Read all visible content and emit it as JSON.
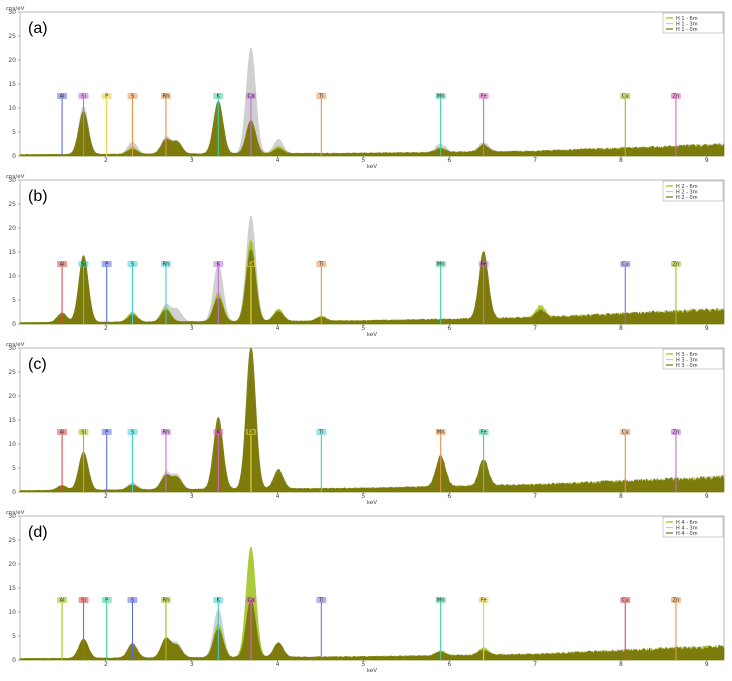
{
  "colors": {
    "s6m": "#9dc21a",
    "s3m": "#c8c8c8",
    "s0m": "#7a7408",
    "axis": "#555555",
    "frame": "#888888"
  },
  "chart_data": [
    {
      "type": "area",
      "panel": "(a)",
      "ylabel": "cps/eV",
      "xlabel": "keV",
      "xlim": [
        1.0,
        9.2
      ],
      "ylim": [
        0,
        30
      ],
      "yticks": [
        0,
        5,
        10,
        15,
        20,
        25,
        30
      ],
      "xticks": [
        2,
        3,
        4,
        5,
        6,
        7,
        8,
        9
      ],
      "legend": [
        "H 1 - 6m",
        "H 1 - 3m",
        "H 1 - 0m"
      ],
      "elements": [
        {
          "symbol": "Al",
          "energy": 1.49,
          "color": "#5b6ee1"
        },
        {
          "symbol": "Si",
          "energy": 1.74,
          "color": "#c46bd8"
        },
        {
          "symbol": "P",
          "energy": 2.01,
          "color": "#e8d23a"
        },
        {
          "symbol": "S",
          "energy": 2.31,
          "color": "#e8944a"
        },
        {
          "symbol": "Rh",
          "energy": 2.7,
          "color": "#e8944a"
        },
        {
          "symbol": "K",
          "energy": 3.31,
          "color": "#3cd0a0"
        },
        {
          "symbol": "Ca",
          "energy": 3.69,
          "color": "#c46bd8"
        },
        {
          "symbol": "Ti",
          "energy": 4.51,
          "color": "#e8944a"
        },
        {
          "symbol": "Mn",
          "energy": 5.9,
          "color": "#3cd0a0"
        },
        {
          "symbol": "Fe",
          "energy": 6.4,
          "color": "#e060c0"
        },
        {
          "symbol": "Cu",
          "energy": 8.05,
          "color": "#9dc21a"
        },
        {
          "symbol": "Zn",
          "energy": 8.64,
          "color": "#e060c0"
        }
      ],
      "series": [
        {
          "name": "H 1 - 6m",
          "peaks": [
            [
              1.74,
              7
            ],
            [
              2.31,
              1.5
            ],
            [
              2.7,
              2.8
            ],
            [
              2.83,
              2
            ],
            [
              3.31,
              8
            ],
            [
              3.69,
              6
            ],
            [
              4.01,
              1.5
            ],
            [
              5.9,
              1
            ],
            [
              6.4,
              1.2
            ]
          ]
        },
        {
          "name": "H 1 - 3m",
          "peaks": [
            [
              1.74,
              10
            ],
            [
              2.31,
              2.5
            ],
            [
              2.7,
              3.5
            ],
            [
              2.83,
              2.5
            ],
            [
              3.31,
              11
            ],
            [
              3.69,
              22
            ],
            [
              4.01,
              3
            ],
            [
              5.9,
              1.8
            ],
            [
              6.4,
              2
            ]
          ]
        },
        {
          "name": "H 1 - 0m",
          "peaks": [
            [
              1.74,
              9
            ],
            [
              2.31,
              1
            ],
            [
              2.7,
              3
            ],
            [
              2.83,
              2.5
            ],
            [
              3.31,
              11
            ],
            [
              3.69,
              7
            ],
            [
              4.01,
              1
            ],
            [
              5.9,
              0.8
            ],
            [
              6.4,
              1.5
            ]
          ]
        }
      ],
      "baseline": [
        [
          1.0,
          0.3
        ],
        [
          5.0,
          0.6
        ],
        [
          7.0,
          1.0
        ],
        [
          9.2,
          2.3
        ]
      ]
    },
    {
      "type": "area",
      "panel": "(b)",
      "ylabel": "cps/eV",
      "xlabel": "keV",
      "xlim": [
        1.0,
        9.2
      ],
      "ylim": [
        0,
        30
      ],
      "yticks": [
        0,
        5,
        10,
        15,
        20,
        25,
        30
      ],
      "xticks": [
        2,
        3,
        4,
        5,
        6,
        7,
        8,
        9
      ],
      "legend": [
        "H 2 - 6m",
        "H 2 - 3m",
        "H 2 - 0m"
      ],
      "elements": [
        {
          "symbol": "Al",
          "energy": 1.49,
          "color": "#e04a4a"
        },
        {
          "symbol": "Si",
          "energy": 1.74,
          "color": "#3cd0a0"
        },
        {
          "symbol": "P",
          "energy": 2.01,
          "color": "#5b6ee1"
        },
        {
          "symbol": "S",
          "energy": 2.31,
          "color": "#3cd0d0"
        },
        {
          "symbol": "Rh",
          "energy": 2.7,
          "color": "#3cd0d0"
        },
        {
          "symbol": "K",
          "energy": 3.31,
          "color": "#c46bd8"
        },
        {
          "symbol": "Ca",
          "energy": 3.69,
          "color": "#e8d23a"
        },
        {
          "symbol": "Ti",
          "energy": 4.51,
          "color": "#e8944a"
        },
        {
          "symbol": "Mn",
          "energy": 5.9,
          "color": "#3cd0a0"
        },
        {
          "symbol": "Fe",
          "energy": 6.4,
          "color": "#c46bd8"
        },
        {
          "symbol": "Cu",
          "energy": 8.05,
          "color": "#8a6be0"
        },
        {
          "symbol": "Zn",
          "energy": 8.64,
          "color": "#9dc21a"
        }
      ],
      "series": [
        {
          "name": "H 2 - 6m",
          "peaks": [
            [
              1.49,
              1.5
            ],
            [
              1.74,
              13
            ],
            [
              2.31,
              2
            ],
            [
              2.7,
              3
            ],
            [
              3.31,
              6
            ],
            [
              3.69,
              17
            ],
            [
              4.01,
              2.5
            ],
            [
              4.51,
              1
            ],
            [
              6.4,
              12
            ],
            [
              7.06,
              2.5
            ]
          ]
        },
        {
          "name": "H 2 - 3m",
          "peaks": [
            [
              1.49,
              1
            ],
            [
              1.74,
              3
            ],
            [
              2.31,
              2
            ],
            [
              2.7,
              3.5
            ],
            [
              2.83,
              2.5
            ],
            [
              3.31,
              12
            ],
            [
              3.69,
              22
            ],
            [
              4.01,
              2.5
            ],
            [
              6.4,
              2
            ]
          ]
        },
        {
          "name": "H 2 - 0m",
          "peaks": [
            [
              1.49,
              2
            ],
            [
              1.74,
              14
            ],
            [
              2.31,
              1.5
            ],
            [
              2.7,
              2.5
            ],
            [
              3.31,
              5
            ],
            [
              3.69,
              15
            ],
            [
              4.01,
              2
            ],
            [
              4.51,
              0.8
            ],
            [
              6.4,
              14
            ],
            [
              7.06,
              1.5
            ]
          ]
        }
      ],
      "baseline": [
        [
          1.0,
          0.3
        ],
        [
          5.0,
          0.7
        ],
        [
          7.0,
          1.3
        ],
        [
          9.2,
          3.0
        ]
      ]
    },
    {
      "type": "area",
      "panel": "(c)",
      "ylabel": "cps/eV",
      "xlabel": "keV",
      "xlim": [
        1.0,
        9.2
      ],
      "ylim": [
        0,
        30
      ],
      "yticks": [
        0,
        5,
        10,
        15,
        20,
        25,
        30
      ],
      "xticks": [
        2,
        3,
        4,
        5,
        6,
        7,
        8,
        9
      ],
      "legend": [
        "H 3 - 6m",
        "H 3 - 3m",
        "H 3 - 0m"
      ],
      "elements": [
        {
          "symbol": "Al",
          "energy": 1.49,
          "color": "#e04a4a"
        },
        {
          "symbol": "Si",
          "energy": 1.74,
          "color": "#9dc21a"
        },
        {
          "symbol": "P",
          "energy": 2.01,
          "color": "#5b6ee1"
        },
        {
          "symbol": "S",
          "energy": 2.31,
          "color": "#3cd0d0"
        },
        {
          "symbol": "Rh",
          "energy": 2.7,
          "color": "#c46bd8"
        },
        {
          "symbol": "K",
          "energy": 3.31,
          "color": "#e060c0"
        },
        {
          "symbol": "Ca",
          "energy": 3.69,
          "color": "#e8d23a"
        },
        {
          "symbol": "Ti",
          "energy": 4.51,
          "color": "#3cd0d0"
        },
        {
          "symbol": "Mn",
          "energy": 5.9,
          "color": "#e8944a"
        },
        {
          "symbol": "Fe",
          "energy": 6.4,
          "color": "#3cd0a0"
        },
        {
          "symbol": "Cu",
          "energy": 8.05,
          "color": "#e8944a"
        },
        {
          "symbol": "Zn",
          "energy": 8.64,
          "color": "#c46bd8"
        }
      ],
      "series": [
        {
          "name": "H 3 - 6m",
          "peaks": [
            [
              1.49,
              1
            ],
            [
              1.74,
              7
            ],
            [
              2.31,
              1.2
            ],
            [
              2.7,
              3
            ],
            [
              2.83,
              2.5
            ],
            [
              3.31,
              13
            ],
            [
              3.69,
              24
            ],
            [
              4.01,
              3
            ],
            [
              5.9,
              5
            ],
            [
              6.4,
              4
            ]
          ]
        },
        {
          "name": "H 3 - 3m",
          "peaks": [
            [
              1.49,
              0.8
            ],
            [
              1.74,
              2
            ],
            [
              2.31,
              1.5
            ],
            [
              2.7,
              3.5
            ],
            [
              2.83,
              3
            ],
            [
              3.31,
              9
            ],
            [
              3.69,
              22
            ],
            [
              4.01,
              2.5
            ],
            [
              5.9,
              1.5
            ],
            [
              6.4,
              2
            ]
          ]
        },
        {
          "name": "H 3 - 0m",
          "peaks": [
            [
              1.49,
              1
            ],
            [
              1.74,
              8
            ],
            [
              2.31,
              1
            ],
            [
              2.7,
              3
            ],
            [
              2.83,
              2.5
            ],
            [
              3.31,
              15
            ],
            [
              3.69,
              30
            ],
            [
              4.01,
              4
            ],
            [
              5.9,
              6.5
            ],
            [
              6.4,
              5.5
            ]
          ]
        }
      ],
      "baseline": [
        [
          1.0,
          0.3
        ],
        [
          5.0,
          0.8
        ],
        [
          7.0,
          1.5
        ],
        [
          9.2,
          3.0
        ]
      ]
    },
    {
      "type": "area",
      "panel": "(d)",
      "ylabel": "cps/eV",
      "xlabel": "keV",
      "xlim": [
        1.0,
        9.2
      ],
      "ylim": [
        0,
        30
      ],
      "yticks": [
        0,
        5,
        10,
        15,
        20,
        25,
        30
      ],
      "xticks": [
        2,
        3,
        4,
        5,
        6,
        7,
        8,
        9
      ],
      "legend": [
        "H 4 - 6m",
        "H 4 - 3m",
        "H 4 - 0m"
      ],
      "elements": [
        {
          "symbol": "Al",
          "energy": 1.49,
          "color": "#9dc21a"
        },
        {
          "symbol": "Si",
          "energy": 1.74,
          "color": "#e04a4a"
        },
        {
          "symbol": "P",
          "energy": 2.01,
          "color": "#3cd0a0"
        },
        {
          "symbol": "S",
          "energy": 2.31,
          "color": "#5b6ee1"
        },
        {
          "symbol": "Rh",
          "energy": 2.7,
          "color": "#9dc21a"
        },
        {
          "symbol": "K",
          "energy": 3.31,
          "color": "#3cd0d0"
        },
        {
          "symbol": "Ca",
          "energy": 3.69,
          "color": "#e060c0"
        },
        {
          "symbol": "Ti",
          "energy": 4.51,
          "color": "#8a6be0"
        },
        {
          "symbol": "Mn",
          "energy": 5.9,
          "color": "#3cd0a0"
        },
        {
          "symbol": "Fe",
          "energy": 6.4,
          "color": "#e8d23a"
        },
        {
          "symbol": "Cu",
          "energy": 8.05,
          "color": "#e04a4a"
        },
        {
          "symbol": "Zn",
          "energy": 8.64,
          "color": "#e8944a"
        }
      ],
      "series": [
        {
          "name": "H 4 - 6m",
          "peaks": [
            [
              1.74,
              4
            ],
            [
              2.31,
              2
            ],
            [
              2.7,
              4
            ],
            [
              2.83,
              2.5
            ],
            [
              3.31,
              7
            ],
            [
              3.69,
              23
            ],
            [
              4.01,
              3
            ],
            [
              5.9,
              1
            ],
            [
              6.4,
              1.5
            ]
          ]
        },
        {
          "name": "H 4 - 3m",
          "peaks": [
            [
              1.74,
              2
            ],
            [
              2.31,
              2
            ],
            [
              2.7,
              4
            ],
            [
              2.83,
              3
            ],
            [
              3.31,
              10
            ],
            [
              3.69,
              13
            ],
            [
              4.01,
              2.5
            ],
            [
              6.4,
              1.5
            ]
          ]
        },
        {
          "name": "H 4 - 0m",
          "peaks": [
            [
              1.74,
              4
            ],
            [
              2.31,
              3
            ],
            [
              2.7,
              4
            ],
            [
              2.83,
              2.5
            ],
            [
              3.31,
              6
            ],
            [
              3.69,
              12
            ],
            [
              4.01,
              3
            ],
            [
              5.9,
              0.8
            ],
            [
              6.4,
              1
            ]
          ]
        }
      ],
      "baseline": [
        [
          1.0,
          0.3
        ],
        [
          5.0,
          0.7
        ],
        [
          7.0,
          1.2
        ],
        [
          9.2,
          2.8
        ]
      ]
    }
  ]
}
